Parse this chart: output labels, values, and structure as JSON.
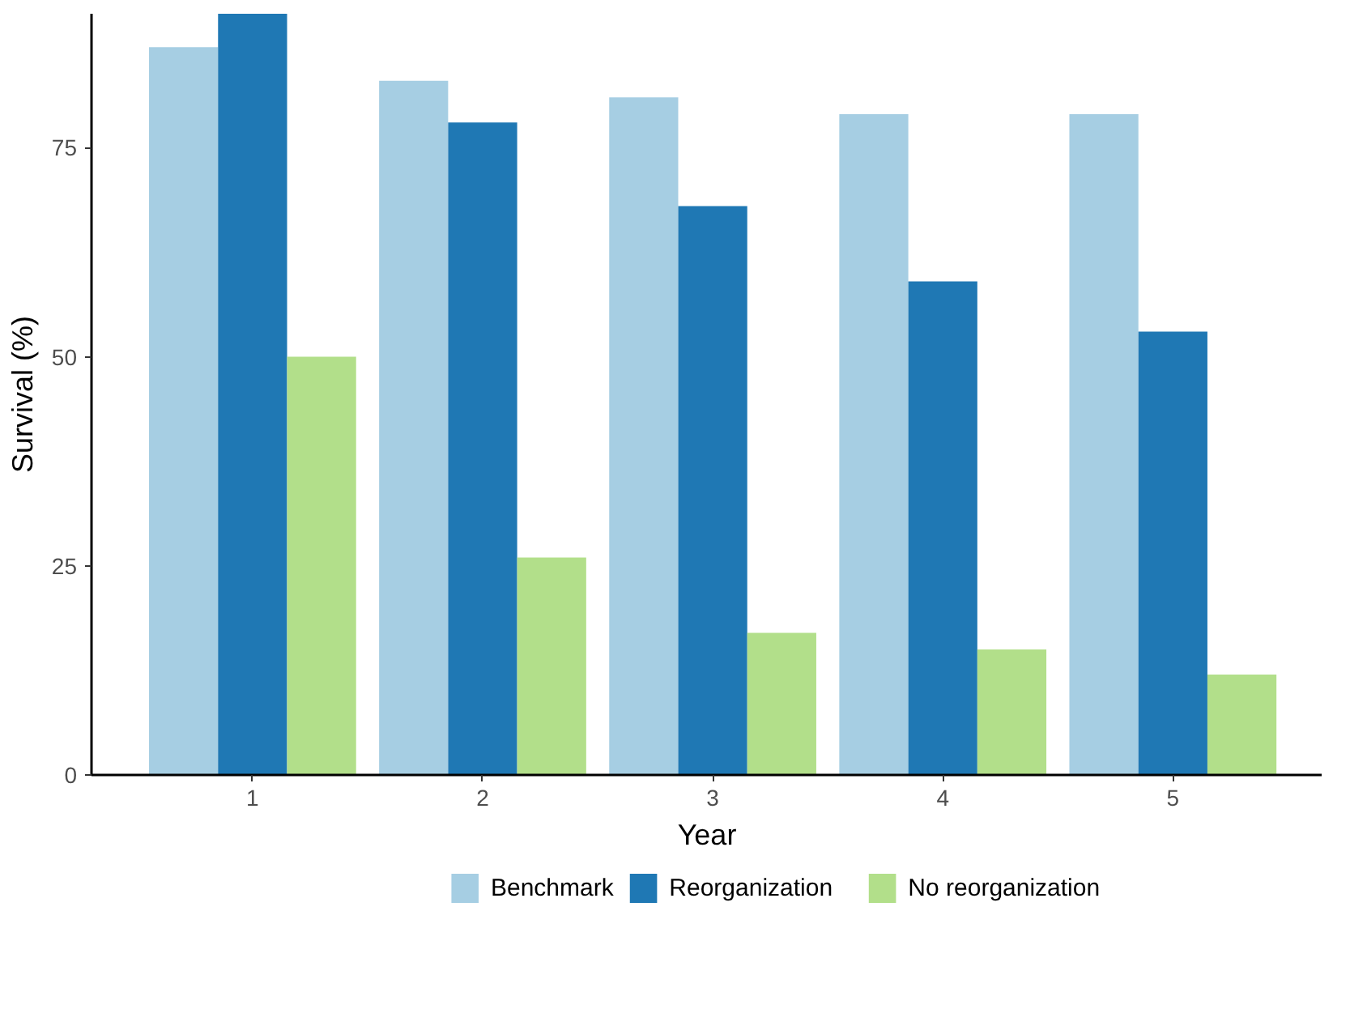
{
  "chart_data": {
    "type": "bar",
    "xlabel": "Year",
    "ylabel": "Survival (%)",
    "categories": [
      "1",
      "2",
      "3",
      "4",
      "5"
    ],
    "series": [
      {
        "name": "Benchmark",
        "color": "#a6cee3",
        "values": [
          87,
          83,
          81,
          79,
          79
        ]
      },
      {
        "name": "Reorganization",
        "color": "#1f78b4",
        "values": [
          91,
          78,
          68,
          59,
          53
        ]
      },
      {
        "name": "No reorganization",
        "color": "#b2df8a",
        "values": [
          50,
          26,
          17,
          15,
          12
        ]
      }
    ],
    "ylim": [
      0,
      91
    ],
    "yticks": [
      0,
      25,
      50,
      75
    ],
    "grid": false,
    "legend": "bottom"
  }
}
